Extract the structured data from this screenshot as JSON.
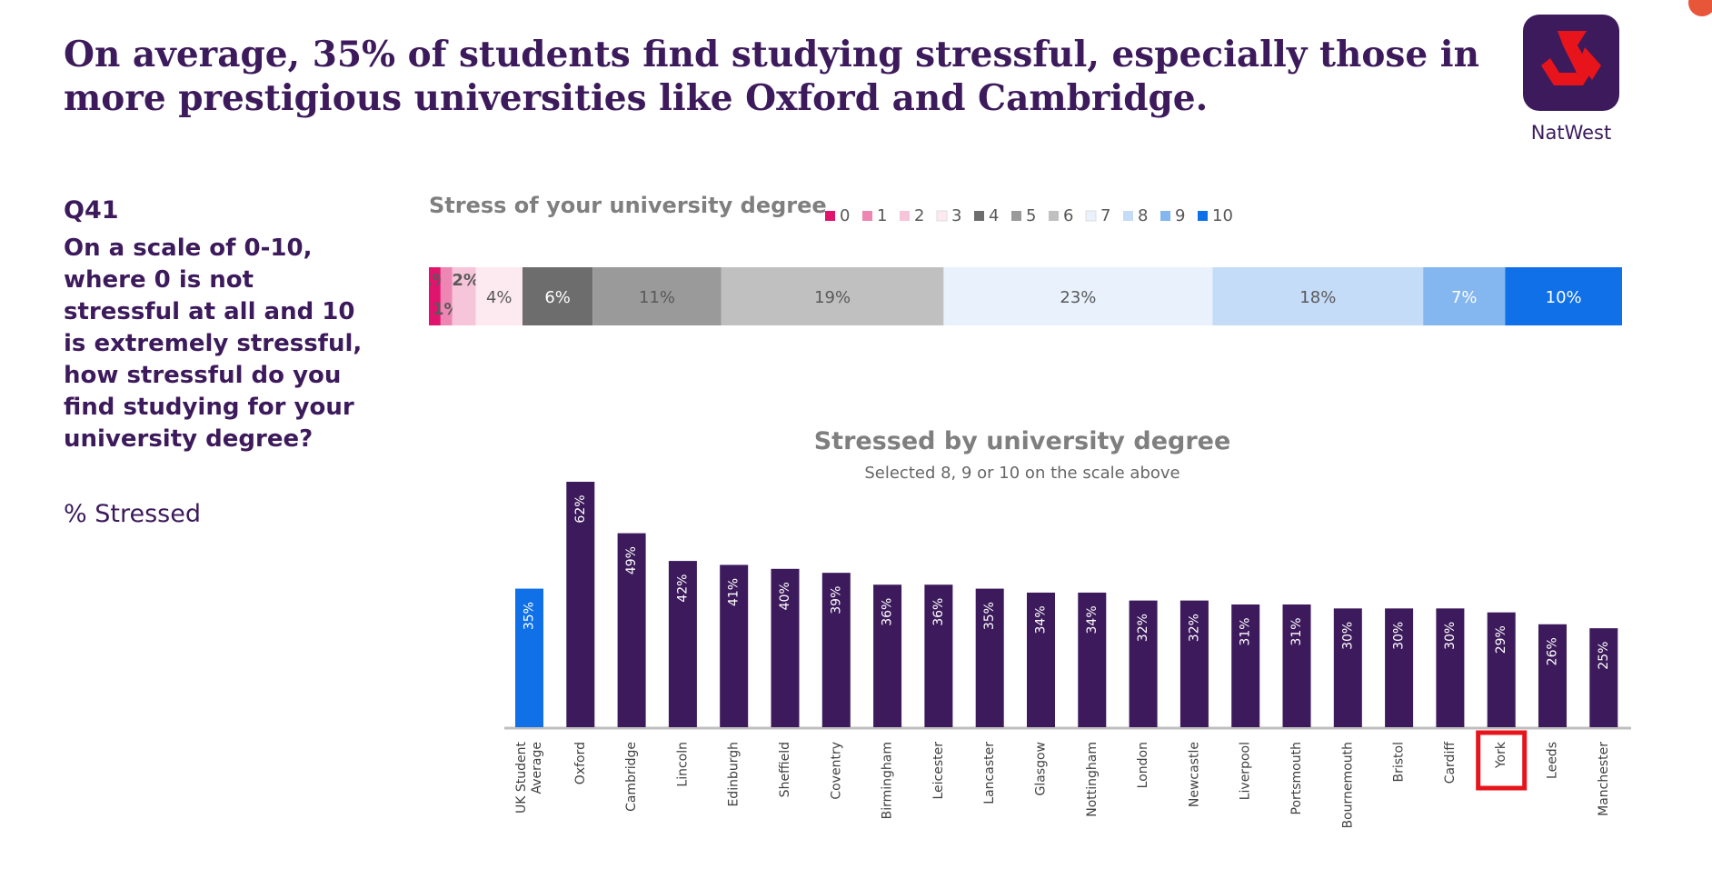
{
  "headline": "On average, 35% of students find studying stressful, especially those in more prestigious universities like Oxford and Cambridge.",
  "brand": {
    "name": "NatWest"
  },
  "question": {
    "number": "Q41",
    "text": "On a scale of 0-10, where 0 is not stressful at all and 10 is extremely stressful, how stressful do you find studying for your university degree?",
    "measure": "% Stressed"
  },
  "colors": {
    "primary": "#3c1a5b",
    "accent": "#1070e8",
    "highlight": "#e8141c"
  },
  "chart_data": [
    {
      "type": "bar",
      "orientation": "horizontal-stacked",
      "title": "Stress of your university degree",
      "legend_position": "top",
      "series": [
        {
          "name": "0",
          "value": 1,
          "label": "1%",
          "color": "#e0136d"
        },
        {
          "name": "1",
          "value": 1,
          "label": "1%",
          "color": "#ee86b3"
        },
        {
          "name": "2",
          "value": 2,
          "label": "2%",
          "color": "#f6c5d9"
        },
        {
          "name": "3",
          "value": 4,
          "label": "4%",
          "color": "#fde9f0"
        },
        {
          "name": "4",
          "value": 6,
          "label": "6%",
          "color": "#6d6d6d"
        },
        {
          "name": "5",
          "value": 11,
          "label": "11%",
          "color": "#9a9a9a"
        },
        {
          "name": "6",
          "value": 19,
          "label": "19%",
          "color": "#c0c0c0"
        },
        {
          "name": "7",
          "value": 23,
          "label": "23%",
          "color": "#e8f1fc"
        },
        {
          "name": "8",
          "value": 18,
          "label": "18%",
          "color": "#c4dcf8"
        },
        {
          "name": "9",
          "value": 7,
          "label": "7%",
          "color": "#84b6ef"
        },
        {
          "name": "10",
          "value": 10,
          "label": "10%",
          "color": "#1070e8"
        }
      ]
    },
    {
      "type": "bar",
      "title": "Stressed by university degree",
      "subtitle": "Selected 8, 9 or 10 on the scale above",
      "ylim": [
        0,
        70
      ],
      "categories": [
        "UK Student Average",
        "Oxford",
        "Cambridge",
        "Lincoln",
        "Edinburgh",
        "Sheffield",
        "Coventry",
        "Birmingham",
        "Leicester",
        "Lancaster",
        "Glasgow",
        "Nottingham",
        "London",
        "Newcastle",
        "Liverpool",
        "Portsmouth",
        "Bournemouth",
        "Bristol",
        "Cardiff",
        "York",
        "Leeds",
        "Manchester"
      ],
      "category_lines": [
        [
          "UK Student",
          "Average"
        ],
        [
          "Oxford"
        ],
        [
          "Cambridge"
        ],
        [
          "Lincoln"
        ],
        [
          "Edinburgh"
        ],
        [
          "Sheffield"
        ],
        [
          "Coventry"
        ],
        [
          "Birmingham"
        ],
        [
          "Leicester"
        ],
        [
          "Lancaster"
        ],
        [
          "Glasgow"
        ],
        [
          "Nottingham"
        ],
        [
          "London"
        ],
        [
          "Newcastle"
        ],
        [
          "Liverpool"
        ],
        [
          "Portsmouth"
        ],
        [
          "Bournemouth"
        ],
        [
          "Bristol"
        ],
        [
          "Cardiff"
        ],
        [
          "York"
        ],
        [
          "Leeds"
        ],
        [
          "Manchester"
        ]
      ],
      "values": [
        35,
        62,
        49,
        42,
        41,
        40,
        39,
        36,
        36,
        35,
        34,
        34,
        32,
        32,
        31,
        31,
        30,
        30,
        30,
        29,
        26,
        25
      ],
      "labels": [
        "35%",
        "62%",
        "49%",
        "42%",
        "41%",
        "40%",
        "39%",
        "36%",
        "36%",
        "35%",
        "34%",
        "34%",
        "32%",
        "32%",
        "31%",
        "31%",
        "30%",
        "30%",
        "30%",
        "29%",
        "26%",
        "25%"
      ],
      "highlighted_category": "York",
      "average_color": "#1070e8",
      "bar_color": "#3c1a5b"
    }
  ]
}
